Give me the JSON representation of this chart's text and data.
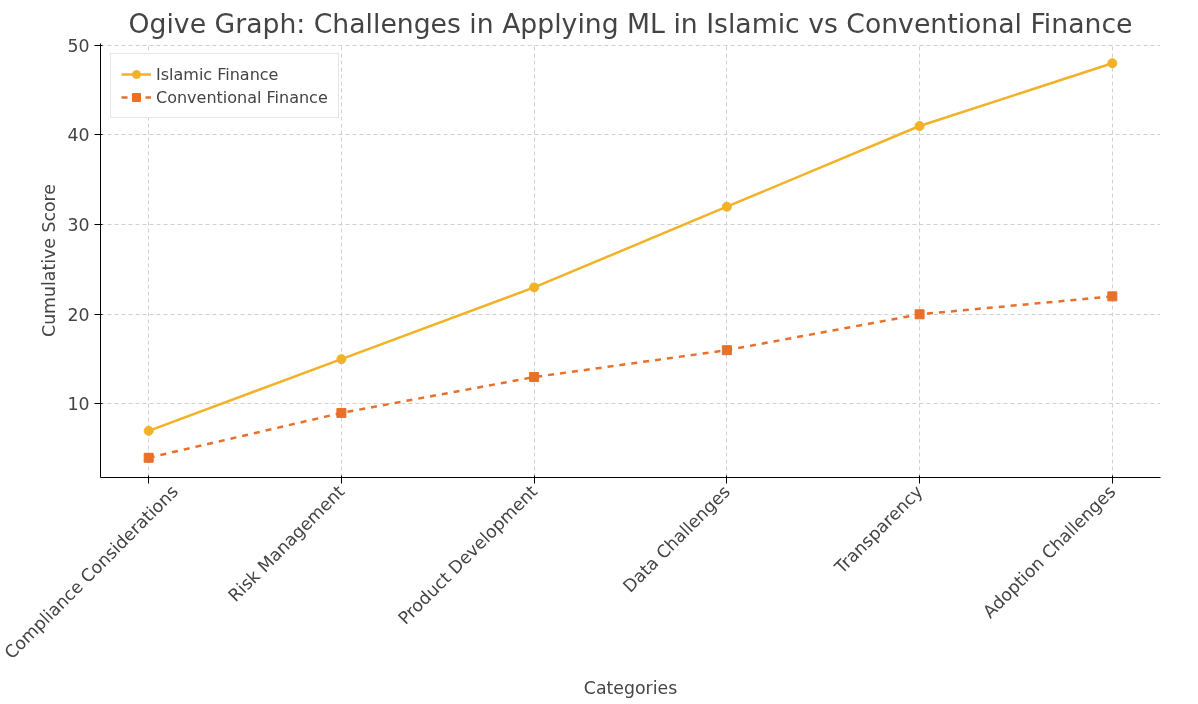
{
  "chart_data": {
    "type": "line",
    "title": "Ogive Graph: Challenges in Applying ML in Islamic vs Conventional Finance",
    "xlabel": "Categories",
    "ylabel": "Cumulative Score",
    "categories": [
      "Compliance Considerations",
      "Risk Management",
      "Product Development",
      "Data Challenges",
      "Transparency",
      "Adoption Challenges"
    ],
    "series": [
      {
        "name": "Islamic Finance",
        "color": "#f2b227",
        "marker": "circle",
        "line_style": "solid",
        "values": [
          7,
          15,
          23,
          32,
          41,
          48
        ]
      },
      {
        "name": "Conventional Finance",
        "color": "#e8702a",
        "marker": "square",
        "line_style": "dashed",
        "values": [
          4,
          9,
          13,
          16,
          20,
          22
        ]
      }
    ],
    "ylim": [
      1.8,
      50.2
    ],
    "yticks": [
      10,
      20,
      30,
      40,
      50
    ],
    "grid": true,
    "legend": "top left"
  }
}
